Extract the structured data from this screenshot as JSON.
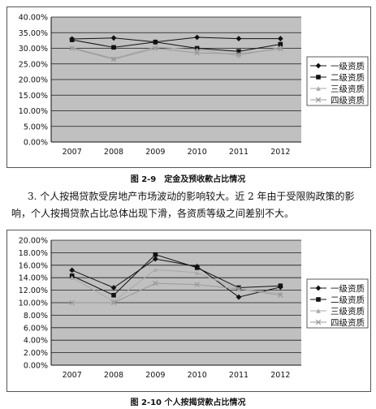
{
  "charts": [
    {
      "caption": "图 2-9　定金及预收款占比情况",
      "chart_data": {
        "type": "line",
        "categories": [
          "2007",
          "2008",
          "2009",
          "2010",
          "2011",
          "2012"
        ],
        "yticks": [
          "40.00%",
          "35.00%",
          "30.00%",
          "25.00%",
          "20.00%",
          "15.00%",
          "10.00%",
          "5.00%",
          "0.00%"
        ],
        "ylim": [
          0,
          0.4
        ],
        "grid": true,
        "legend_position": "right",
        "series": [
          {
            "name": "一级资质",
            "values": [
              0.33,
              0.333,
              0.32,
              0.335,
              0.331,
              0.331
            ],
            "color": "#111111",
            "marker": "diamond"
          },
          {
            "name": "二级资质",
            "values": [
              0.327,
              0.303,
              0.32,
              0.3,
              0.29,
              0.313
            ],
            "color": "#111111",
            "marker": "square"
          },
          {
            "name": "三级资质",
            "values": [
              0.302,
              0.268,
              0.304,
              0.295,
              0.277,
              0.303
            ],
            "color": "#aaaaaa",
            "marker": "triangle"
          },
          {
            "name": "四级资质",
            "values": [
              0.3,
              0.265,
              0.3,
              0.285,
              0.282,
              0.298
            ],
            "color": "#999999",
            "marker": "x"
          }
        ]
      }
    },
    {
      "caption": "图 2-10 个人按揭贷款占比情况",
      "chart_data": {
        "type": "line",
        "categories": [
          "2007",
          "2008",
          "2009",
          "2010",
          "2011",
          "2012"
        ],
        "yticks": [
          "20.00%",
          "18.00%",
          "16.00%",
          "14.00%",
          "12.00%",
          "10.00%",
          "8.00%",
          "6.00%",
          "4.00%",
          "2.00%",
          "0.00%"
        ],
        "ylim": [
          0,
          0.2
        ],
        "grid": true,
        "legend_position": "right",
        "series": [
          {
            "name": "一级资质",
            "values": [
              0.152,
              0.124,
              0.17,
              0.158,
              0.109,
              0.125
            ],
            "color": "#111111",
            "marker": "diamond"
          },
          {
            "name": "二级资质",
            "values": [
              0.143,
              0.112,
              0.177,
              0.156,
              0.124,
              0.127
            ],
            "color": "#111111",
            "marker": "square"
          },
          {
            "name": "三级资质",
            "values": [
              0.14,
              0.102,
              0.153,
              0.148,
              0.122,
              0.115
            ],
            "color": "#aaaaaa",
            "marker": "triangle"
          },
          {
            "name": "四级资质",
            "values": [
              0.1,
              0.1,
              0.131,
              0.129,
              0.122,
              0.112
            ],
            "color": "#999999",
            "marker": "x"
          }
        ]
      }
    }
  ],
  "paragraph": "3. 个人按揭贷款受房地产市场波动的影响较大。近 2 年由于受限购政策的影响，个人按揭贷款占比总体出现下滑，各资质等级之间差别不大。"
}
